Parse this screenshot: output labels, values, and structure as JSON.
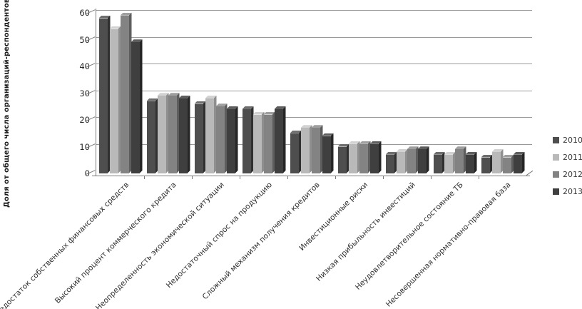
{
  "chart_data": {
    "type": "bar",
    "title": "",
    "xlabel": "",
    "ylabel": "Доля от общего числа организаций-респондентов, %",
    "ylim": [
      0,
      60
    ],
    "yticks": [
      0,
      10,
      20,
      30,
      40,
      50,
      60
    ],
    "grid": true,
    "legend_position": "right",
    "style": "3d-clustered-grayscale",
    "categories": [
      "Недостаток собственных финансовых средств",
      "Высокий процент коммерческого кредита",
      "Неопределенность экономической ситуации",
      "Недостаточный спрос на продукцию",
      "Сложный механизм получения кредитов",
      "Инвестиционные риски",
      "Низкая прибыльность инвестиций",
      "Неудовлетворительное состояние ТБ",
      "Несовершенная нормативно-правовая база"
    ],
    "series": [
      {
        "name": "2010",
        "color": "#4e4e4e",
        "top_color": "#6e6e6e",
        "side_color": "#303030",
        "values": [
          58,
          27,
          26,
          24,
          15,
          10,
          7,
          7,
          6
        ]
      },
      {
        "name": "2011",
        "color": "#b9b9b9",
        "top_color": "#d2d2d2",
        "side_color": "#8f8f8f",
        "values": [
          54,
          29,
          28,
          22,
          17,
          11,
          8,
          7,
          8
        ]
      },
      {
        "name": "2012",
        "color": "#838383",
        "top_color": "#9f9f9f",
        "side_color": "#5d5d5d",
        "values": [
          59,
          29,
          25,
          22,
          17,
          11,
          9,
          9,
          6
        ]
      },
      {
        "name": "2013",
        "color": "#3f3f3f",
        "top_color": "#5e5e5e",
        "side_color": "#262626",
        "values": [
          49,
          28,
          24,
          24,
          14,
          11,
          9,
          7,
          7
        ]
      }
    ],
    "axis_colors": {
      "grid": "#9a9a9a",
      "axis": "#7a7a7a",
      "tick_text": "#262626"
    }
  }
}
